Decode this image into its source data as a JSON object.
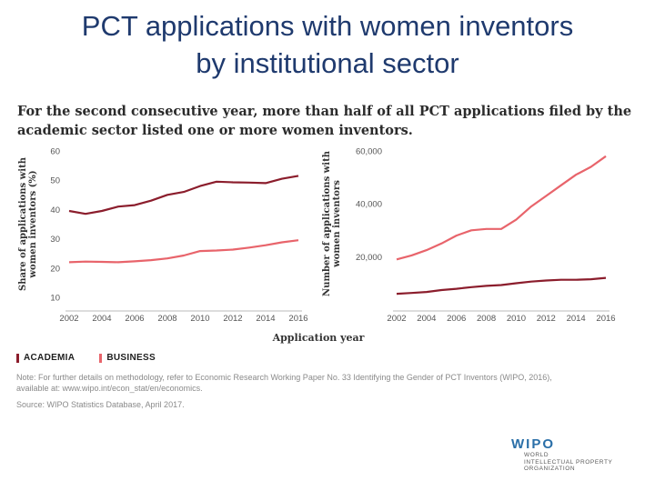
{
  "slide": {
    "title_line1": "PCT applications with women inventors",
    "title_line2": "by institutional sector"
  },
  "subtitle": {
    "line1": "For the second consecutive year, more than half of all PCT applications filed by the",
    "line2": "academic sector listed one or more women inventors."
  },
  "legend": {
    "academia": "ACADEMIA",
    "business": "BUSINESS"
  },
  "note": {
    "line1": "Note: For further details on methodology, refer to Economic Research Working Paper No. 33 Identifying the Gender of PCT Inventors (WIPO, 2016),",
    "line2": "available at: www.wipo.int/econ_stat/en/economics."
  },
  "source": "Source: WIPO Statistics Database, April 2017.",
  "logo": {
    "mark": "WIPO",
    "org_lines": [
      "WORLD",
      "INTELLECTUAL PROPERTY",
      "ORGANIZATION"
    ]
  },
  "colors": {
    "academia": "#8b1d2c",
    "business": "#e8646b",
    "title": "#1f3a6e"
  },
  "chart_data": [
    {
      "type": "line",
      "title": "",
      "xlabel": "Application year",
      "ylabel": "Share of applications with women inventors (%)",
      "ylim": [
        10,
        60
      ],
      "yticks": [
        "10",
        "20",
        "30",
        "40",
        "50",
        "60"
      ],
      "x": [
        2002,
        2003,
        2004,
        2005,
        2006,
        2007,
        2008,
        2009,
        2010,
        2011,
        2012,
        2013,
        2014,
        2015,
        2016
      ],
      "xtick_labels": [
        "2002",
        "2004",
        "2006",
        "2008",
        "2010",
        "2012",
        "2014",
        "2016"
      ],
      "grid": false,
      "series": [
        {
          "name": "ACADEMIA",
          "color": "#8b1d2c",
          "values": [
            39.5,
            38.5,
            39.5,
            41,
            41.5,
            43,
            45,
            46,
            48,
            49.5,
            49.3,
            49.2,
            49,
            50.5,
            51.5
          ]
        },
        {
          "name": "BUSINESS",
          "color": "#e8646b",
          "values": [
            22,
            22.2,
            22.1,
            22,
            22.3,
            22.7,
            23.3,
            24.3,
            25.8,
            26,
            26.3,
            27,
            27.8,
            28.8,
            29.5
          ]
        }
      ]
    },
    {
      "type": "line",
      "title": "",
      "xlabel": "Application year",
      "ylabel": "Number of applications with women inventors",
      "ylim": [
        5000,
        60000
      ],
      "yticks": [
        "20,000",
        "40,000",
        "60,000"
      ],
      "x": [
        2002,
        2003,
        2004,
        2005,
        2006,
        2007,
        2008,
        2009,
        2010,
        2011,
        2012,
        2013,
        2014,
        2015,
        2016
      ],
      "xtick_labels": [
        "2002",
        "2004",
        "2006",
        "2008",
        "2010",
        "2012",
        "2014",
        "2016"
      ],
      "grid": false,
      "series": [
        {
          "name": "ACADEMIA",
          "color": "#8b1d2c",
          "values": [
            6000,
            6300,
            6700,
            7400,
            7900,
            8500,
            9000,
            9300,
            10000,
            10600,
            11000,
            11300,
            11300,
            11500,
            12000
          ]
        },
        {
          "name": "BUSINESS",
          "color": "#e8646b",
          "values": [
            19000,
            20500,
            22500,
            25000,
            28000,
            30000,
            30500,
            30500,
            34000,
            39000,
            43000,
            47000,
            51000,
            54000,
            58000
          ]
        }
      ]
    }
  ]
}
